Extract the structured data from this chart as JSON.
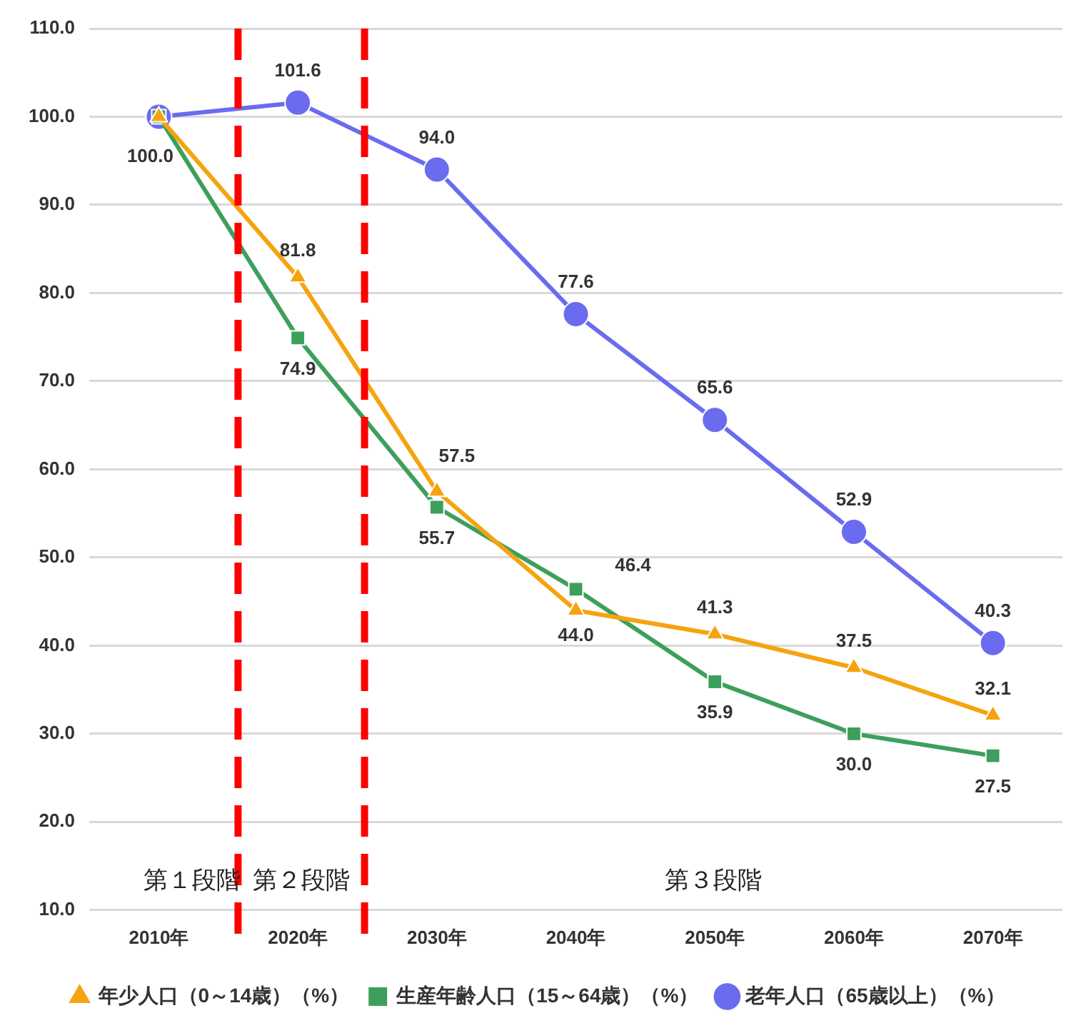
{
  "chart_data": {
    "type": "line",
    "x": [
      2010,
      2020,
      2030,
      2040,
      2050,
      2060,
      2070
    ],
    "xlim": [
      2005,
      2075
    ],
    "xticks": [
      {
        "value": 2010,
        "label": "2010年"
      },
      {
        "value": 2020,
        "label": "2020年"
      },
      {
        "value": 2030,
        "label": "2030年"
      },
      {
        "value": 2040,
        "label": "2040年"
      },
      {
        "value": 2050,
        "label": "2050年"
      },
      {
        "value": 2060,
        "label": "2060年"
      },
      {
        "value": 2070,
        "label": "2070年"
      }
    ],
    "ylim": [
      10,
      110
    ],
    "yticks": [
      {
        "value": 10,
        "label": "10.0"
      },
      {
        "value": 20,
        "label": "20.0"
      },
      {
        "value": 30,
        "label": "30.0"
      },
      {
        "value": 40,
        "label": "40.0"
      },
      {
        "value": 50,
        "label": "50.0"
      },
      {
        "value": 60,
        "label": "60.0"
      },
      {
        "value": 70,
        "label": "70.0"
      },
      {
        "value": 80,
        "label": "80.0"
      },
      {
        "value": 90,
        "label": "90.0"
      },
      {
        "value": 100,
        "label": "100.0"
      },
      {
        "value": 110,
        "label": "110.0"
      }
    ],
    "grid": "y",
    "legend": "bottom",
    "line_style": "solid",
    "series": [
      {
        "name": "年少人口（0～14歳）（%）",
        "color": "#f5a30f",
        "marker": "triangle",
        "values": [
          100,
          81.8,
          57.5,
          44.0,
          41.3,
          37.5,
          32.1
        ],
        "value_labels": [
          null,
          "81.8",
          "57.5",
          "44.0",
          "41.3",
          "37.5",
          "32.1"
        ]
      },
      {
        "name": "生産年齢人口（15～64歳）（%）",
        "color": "#3e9f5c",
        "marker": "square",
        "values": [
          100,
          74.9,
          55.7,
          46.4,
          35.9,
          30.0,
          27.5
        ],
        "value_labels": [
          "100.0",
          "74.9",
          "55.7",
          "46.4",
          "35.9",
          "30.0",
          "27.5"
        ]
      },
      {
        "name": "老年人口（65歳以上）（%）",
        "color": "#6b6bf0",
        "marker": "circle",
        "values": [
          100,
          101.6,
          94.0,
          77.6,
          65.6,
          52.9,
          40.3
        ],
        "value_labels": [
          null,
          "101.6",
          "94.0",
          "77.6",
          "65.6",
          "52.9",
          "40.3"
        ]
      }
    ],
    "ref_lines": [
      {
        "axis": "x",
        "value": 2015.7,
        "color": "#ff0000",
        "line_style": "dashed"
      },
      {
        "axis": "x",
        "value": 2024.8,
        "color": "#ff0000",
        "line_style": "dashed"
      }
    ],
    "annotations": [
      "第１段階",
      "第２段階",
      "第３段階"
    ]
  }
}
